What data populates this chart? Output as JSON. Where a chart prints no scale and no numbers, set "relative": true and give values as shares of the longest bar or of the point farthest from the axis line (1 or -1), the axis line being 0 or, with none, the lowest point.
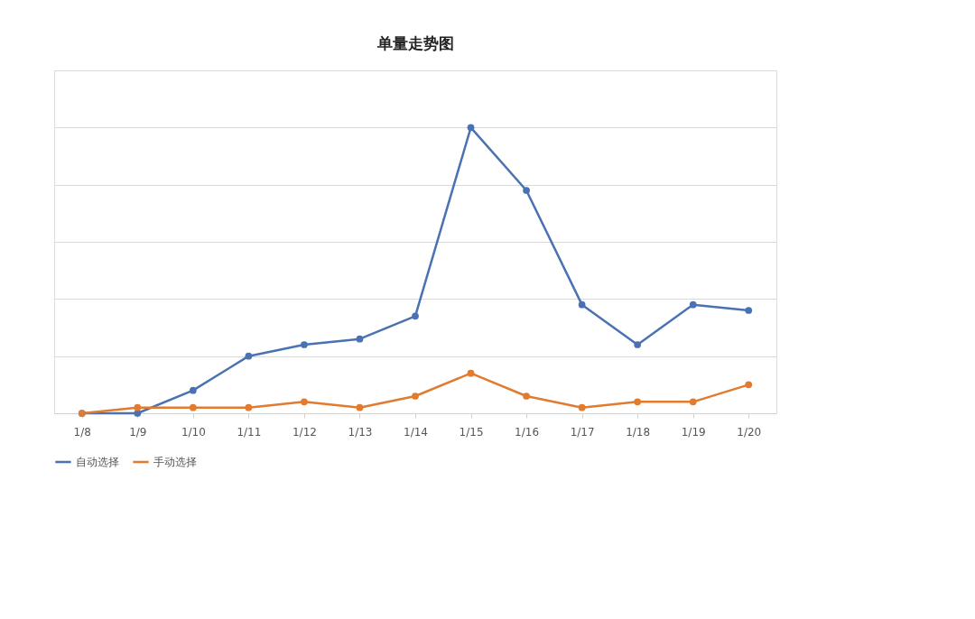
{
  "chart_data": {
    "type": "line",
    "title": "单量走势图",
    "relative": true,
    "categories": [
      "1/8",
      "1/9",
      "1/10",
      "1/11",
      "1/12",
      "1/13",
      "1/14",
      "1/15",
      "1/16",
      "1/17",
      "1/18",
      "1/19",
      "1/20"
    ],
    "series": [
      {
        "name": "自动选择",
        "color": "#4a72b2",
        "values": [
          0,
          0,
          0.08,
          0.2,
          0.24,
          0.26,
          0.34,
          1,
          0.78,
          0.38,
          0.24,
          0.38,
          0.36
        ]
      },
      {
        "name": "手动选择",
        "color": "#e07b2f",
        "values": [
          0,
          0.02,
          0.02,
          0.02,
          0.04,
          0.02,
          0.06,
          0.14,
          0.06,
          0.02,
          0.04,
          0.04,
          0.1
        ]
      }
    ],
    "grid": "y",
    "legend": "bottom",
    "marker": "circle",
    "line_style": "solid"
  }
}
